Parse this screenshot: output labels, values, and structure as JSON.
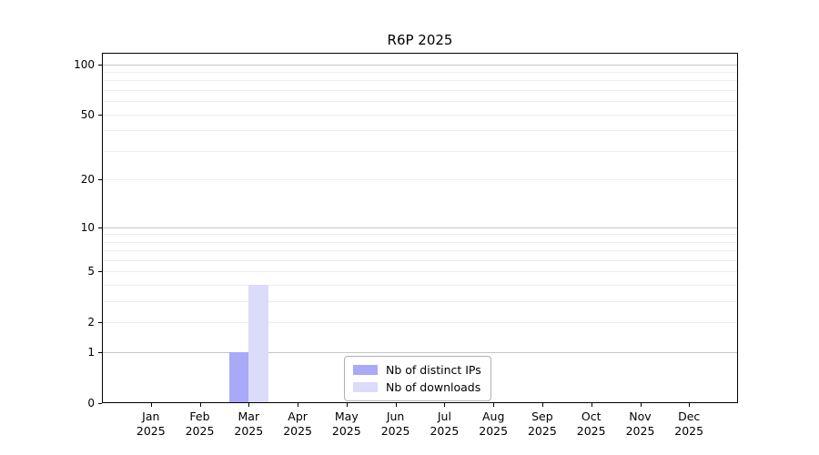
{
  "chart_data": {
    "type": "bar",
    "title": "R6P 2025",
    "categories": [
      "Jan",
      "Feb",
      "Mar",
      "Apr",
      "May",
      "Jun",
      "Jul",
      "Aug",
      "Sep",
      "Oct",
      "Nov",
      "Dec"
    ],
    "category_year": "2025",
    "series": [
      {
        "name": "Nb of distinct IPs",
        "color": "#a9a9f7",
        "values": [
          0,
          0,
          1,
          0,
          0,
          0,
          0,
          0,
          0,
          0,
          0,
          0
        ]
      },
      {
        "name": "Nb of downloads",
        "color": "#dcdbfa",
        "values": [
          0,
          0,
          4,
          0,
          0,
          0,
          0,
          0,
          0,
          0,
          0,
          0
        ]
      }
    ],
    "yscale": "log1p",
    "yticks": [
      0,
      1,
      2,
      5,
      10,
      20,
      50,
      100
    ],
    "ylim": [
      0,
      117
    ],
    "xlabel": "",
    "ylabel": "",
    "grid": {
      "major_values": [
        1,
        10,
        100
      ],
      "minor_values": [
        2,
        3,
        4,
        5,
        6,
        7,
        8,
        9,
        20,
        30,
        40,
        50,
        60,
        70,
        80,
        90
      ],
      "major_color": "#c6c6c6",
      "minor_color": "#ececec"
    },
    "legend": {
      "position": "inside-bottom-center"
    },
    "colors": {
      "axis": "#000000",
      "background": "#ffffff",
      "text": "#000000"
    }
  }
}
